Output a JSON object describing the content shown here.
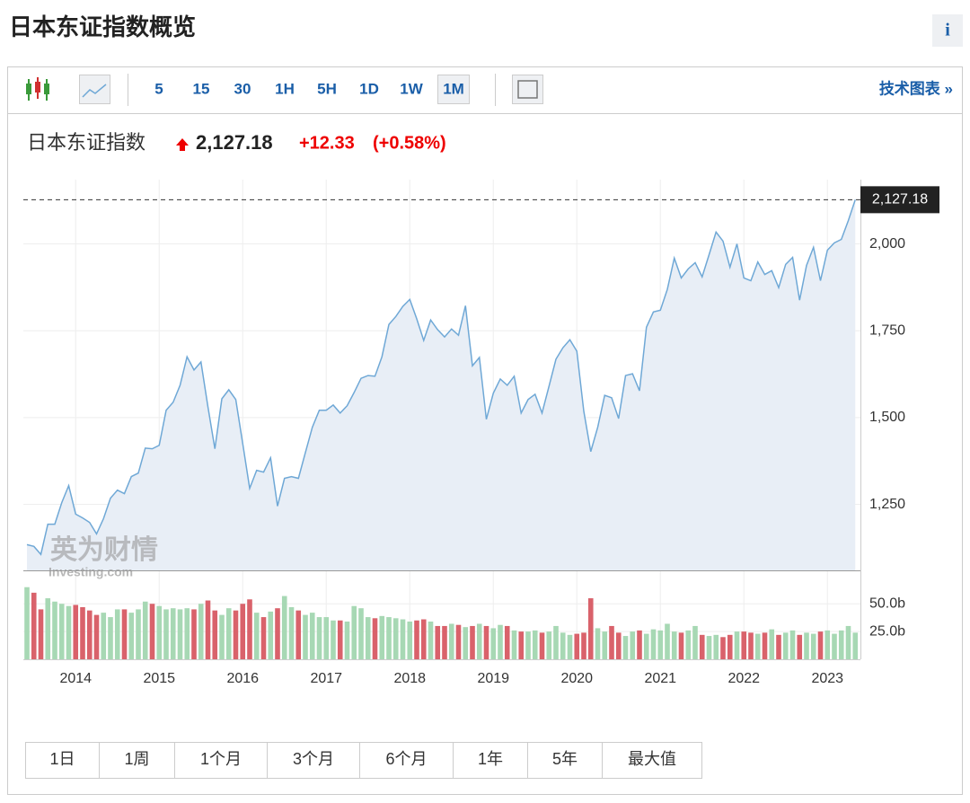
{
  "header": {
    "title": "日本东证指数概览",
    "info": "i"
  },
  "toolbar": {
    "intervals": [
      "5",
      "15",
      "30",
      "1H",
      "5H",
      "1D",
      "1W",
      "1M"
    ],
    "active": "1M",
    "link": "技术图表 »"
  },
  "quote": {
    "name": "日本东证指数",
    "price": "2,127.18",
    "change": "+12.33",
    "change_percent": "(+0.58%)"
  },
  "watermark": {
    "brand": "英为财情",
    "site": "Investing.com"
  },
  "chart_data": {
    "type": "line",
    "color": "#6fa8d6",
    "area_color": "#e8eef6",
    "categories": [
      null,
      null,
      null,
      null,
      null,
      null,
      null,
      "2014",
      null,
      null,
      null,
      null,
      null,
      null,
      null,
      null,
      null,
      null,
      null,
      "2015",
      null,
      null,
      null,
      null,
      null,
      null,
      null,
      null,
      null,
      null,
      null,
      "2016",
      null,
      null,
      null,
      null,
      null,
      null,
      null,
      null,
      null,
      null,
      null,
      "2017",
      null,
      null,
      null,
      null,
      null,
      null,
      null,
      null,
      null,
      null,
      null,
      "2018",
      null,
      null,
      null,
      null,
      null,
      null,
      null,
      null,
      null,
      null,
      null,
      "2019",
      null,
      null,
      null,
      null,
      null,
      null,
      null,
      null,
      null,
      null,
      null,
      "2020",
      null,
      null,
      null,
      null,
      null,
      null,
      null,
      null,
      null,
      null,
      null,
      "2021",
      null,
      null,
      null,
      null,
      null,
      null,
      null,
      null,
      null,
      null,
      null,
      "2022",
      null,
      null,
      null,
      null,
      null,
      null,
      null,
      null,
      null,
      null,
      null,
      "2023",
      null,
      null,
      null,
      null
    ],
    "values": [
      1134,
      1129,
      1106,
      1193,
      1193,
      1255,
      1304,
      1222,
      1211,
      1198,
      1165,
      1209,
      1268,
      1291,
      1281,
      1330,
      1340,
      1412,
      1410,
      1420,
      1521,
      1544,
      1593,
      1675,
      1637,
      1660,
      1531,
      1410,
      1554,
      1580,
      1552,
      1425,
      1296,
      1348,
      1343,
      1384,
      1245,
      1325,
      1330,
      1325,
      1399,
      1472,
      1521,
      1521,
      1536,
      1513,
      1534,
      1572,
      1613,
      1621,
      1619,
      1675,
      1768,
      1791,
      1820,
      1840,
      1784,
      1722,
      1781,
      1753,
      1732,
      1755,
      1737,
      1822,
      1649,
      1673,
      1495,
      1570,
      1611,
      1593,
      1619,
      1513,
      1552,
      1567,
      1513,
      1590,
      1668,
      1701,
      1724,
      1691,
      1518,
      1402,
      1472,
      1564,
      1557,
      1497,
      1621,
      1626,
      1577,
      1760,
      1804,
      1809,
      1869,
      1959,
      1902,
      1928,
      1946,
      1905,
      1969,
      2034,
      2008,
      1933,
      2000,
      1902,
      1894,
      1948,
      1912,
      1923,
      1874,
      1941,
      1961,
      1838,
      1938,
      1990,
      1894,
      1982,
      2003,
      2013,
      2067,
      2127.18
    ],
    "last_value_label": "2,127.18",
    "ylim": [
      1060,
      2185
    ],
    "yticks": [
      {
        "value": 1250,
        "label": "1,250"
      },
      {
        "value": 1500,
        "label": "1,500"
      },
      {
        "value": 1750,
        "label": "1,750"
      },
      {
        "value": 2000,
        "label": "2,000"
      }
    ],
    "grid": true,
    "volume": {
      "up_color": "#a7d8b4",
      "down_color": "#d9626b",
      "ylim": [
        0,
        68
      ],
      "yticks": [
        {
          "value": 25,
          "label": "25.0b"
        },
        {
          "value": 50,
          "label": "50.0b"
        }
      ],
      "values": [
        65,
        60,
        45,
        55,
        52,
        50,
        48,
        49,
        47,
        44,
        40,
        42,
        38,
        45,
        45,
        42,
        45,
        52,
        50,
        48,
        45,
        46,
        45,
        46,
        45,
        50,
        53,
        44,
        40,
        46,
        44,
        50,
        54,
        42,
        38,
        43,
        46,
        57,
        47,
        44,
        40,
        42,
        38,
        38,
        35,
        35,
        34,
        48,
        46,
        38,
        37,
        39,
        38,
        37,
        36,
        34,
        35,
        36,
        34,
        30,
        30,
        32,
        31,
        29,
        30,
        32,
        30,
        28,
        31,
        30,
        26,
        25,
        25,
        26,
        24,
        25,
        30,
        24,
        22,
        23,
        24,
        55,
        28,
        25,
        30,
        24,
        21,
        25,
        26,
        23,
        27,
        26,
        32,
        25,
        24,
        26,
        30,
        22,
        21,
        22,
        20,
        22,
        25,
        25,
        24,
        23,
        24,
        27,
        22,
        24,
        26,
        22,
        24,
        23,
        25,
        26,
        23,
        26,
        30,
        24
      ]
    }
  },
  "range_buttons": [
    "1日",
    "1周",
    "1个月",
    "3个月",
    "6个月",
    "1年",
    "5年",
    "最大值"
  ]
}
